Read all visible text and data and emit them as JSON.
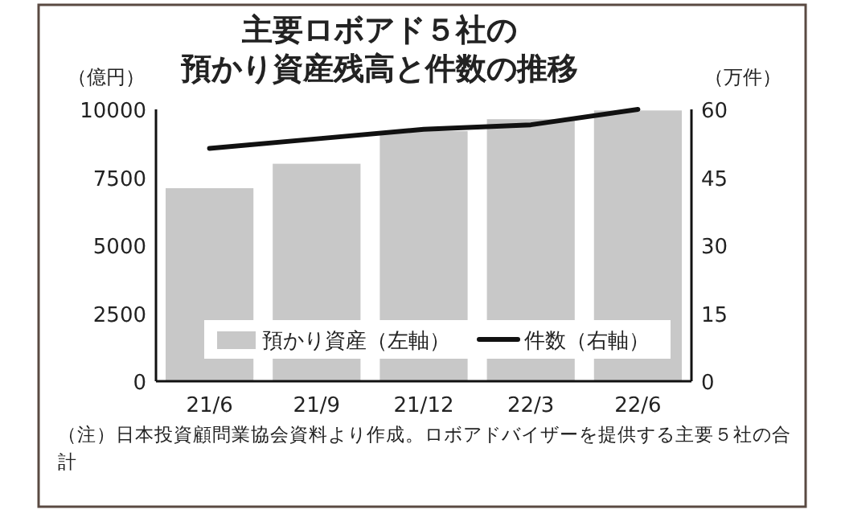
{
  "chart_data": {
    "type": "bar",
    "title": "主要ロボアド５社の",
    "subtitle": "預かり資産残高と件数の推移",
    "ylabel": "（億円）",
    "y2label": "（万件）",
    "categories": [
      "21/6",
      "21/9",
      "21/12",
      "22/3",
      "22/6"
    ],
    "series": [
      {
        "name": "預かり資産（左軸）",
        "color": "#c8c8c8",
        "values": [
          7100,
          8000,
          9200,
          9640,
          9960
        ]
      },
      {
        "name": "件数（右軸）",
        "type": "line",
        "axis": "y2",
        "color": "#111111",
        "values": [
          51.4,
          53.5,
          55.6,
          56.6,
          60
        ]
      }
    ],
    "ylim": [
      0,
      10000
    ],
    "yticks": [
      0,
      2500,
      5000,
      7500,
      10000
    ],
    "y2lim": [
      0,
      60
    ],
    "y2ticks": [
      0,
      15,
      30,
      45,
      60
    ],
    "legend": "bottom",
    "annotations": [
      "（注）日本投資顧問業協会資料より作成。ロボアドバイザーを提供する主要５社の合計"
    ]
  }
}
